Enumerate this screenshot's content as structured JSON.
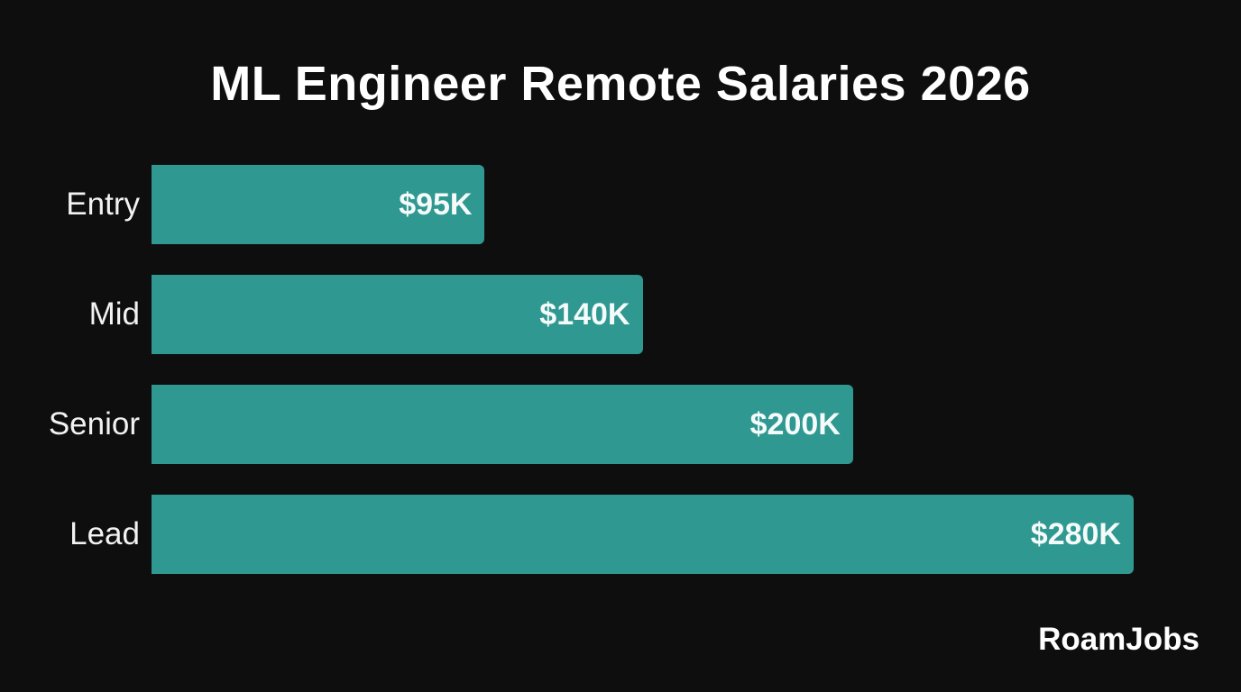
{
  "chart_data": {
    "type": "bar",
    "orientation": "horizontal",
    "title": "ML Engineer Remote Salaries 2026",
    "categories": [
      "Entry",
      "Mid",
      "Senior",
      "Lead"
    ],
    "values": [
      95,
      140,
      200,
      280
    ],
    "data_labels": [
      "$95K",
      "$140K",
      "$200K",
      "$280K"
    ],
    "unit": "thousand USD",
    "xlim": [
      0,
      280
    ],
    "grid": false,
    "bar_color": "#2f9890",
    "background": "#0e0e0f"
  },
  "brand": "RoamJobs"
}
